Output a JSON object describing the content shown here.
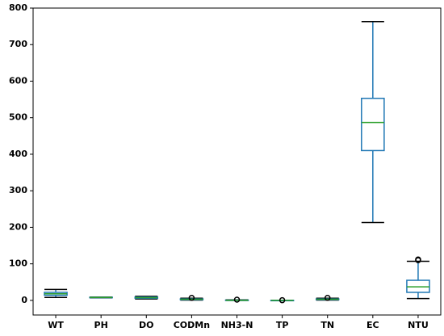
{
  "chart_data": {
    "type": "box",
    "categories": [
      "WT",
      "PH",
      "DO",
      "CODMn",
      "NH3-N",
      "TP",
      "TN",
      "EC",
      "NTU"
    ],
    "boxes": [
      {
        "low": 8,
        "q1": 14,
        "median": 18,
        "q3": 22,
        "high": 30,
        "outliers": []
      },
      {
        "low": 7,
        "q1": 7.5,
        "median": 8,
        "q3": 8.5,
        "high": 9,
        "outliers": []
      },
      {
        "low": 4,
        "q1": 6,
        "median": 7.5,
        "q3": 9,
        "high": 11,
        "outliers": []
      },
      {
        "low": 1,
        "q1": 2,
        "median": 3,
        "q3": 4,
        "high": 6,
        "outliers": [
          7
        ]
      },
      {
        "low": 0,
        "q1": 0.2,
        "median": 0.4,
        "q3": 0.8,
        "high": 1.5,
        "outliers": [
          2
        ]
      },
      {
        "low": 0,
        "q1": 0.05,
        "median": 0.1,
        "q3": 0.15,
        "high": 0.3,
        "outliers": [
          0.5
        ]
      },
      {
        "low": 1,
        "q1": 2,
        "median": 3,
        "q3": 4,
        "high": 6,
        "outliers": [
          7
        ]
      },
      {
        "low": 213,
        "q1": 410,
        "median": 487,
        "q3": 553,
        "high": 763,
        "outliers": []
      },
      {
        "low": 5,
        "q1": 22,
        "median": 37,
        "q3": 55,
        "high": 107,
        "outliers": [
          110,
          112
        ]
      }
    ],
    "box_color": "#1f77b4",
    "median_color": "#2ca02c",
    "cap_color": "#000000",
    "ylim": [
      -40,
      800
    ],
    "yticks": [
      0,
      100,
      200,
      300,
      400,
      500,
      600,
      700,
      800
    ],
    "grid": false
  }
}
